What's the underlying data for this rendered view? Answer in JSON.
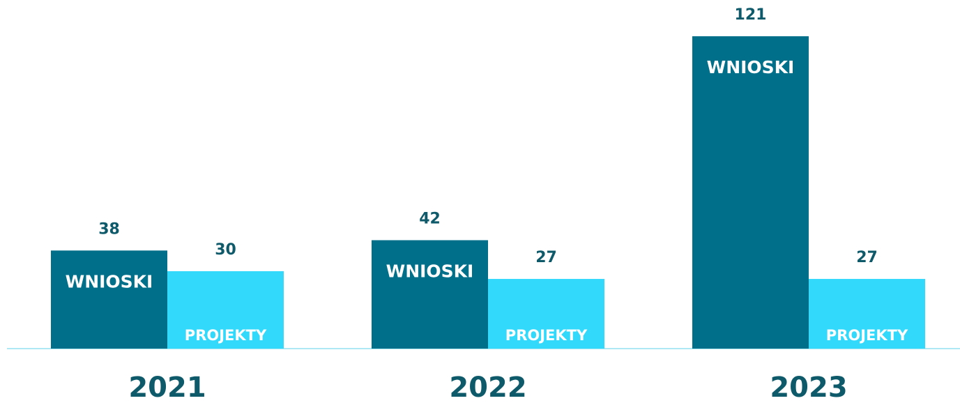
{
  "chart_data": {
    "type": "bar",
    "categories": [
      "2021",
      "2022",
      "2023"
    ],
    "series": [
      {
        "name": "WNIOSKI",
        "color": "#006f8a",
        "values": [
          38,
          42,
          121
        ]
      },
      {
        "name": "PROJEKTY",
        "color": "#33d9fb",
        "values": [
          30,
          27,
          27
        ]
      }
    ]
  }
}
